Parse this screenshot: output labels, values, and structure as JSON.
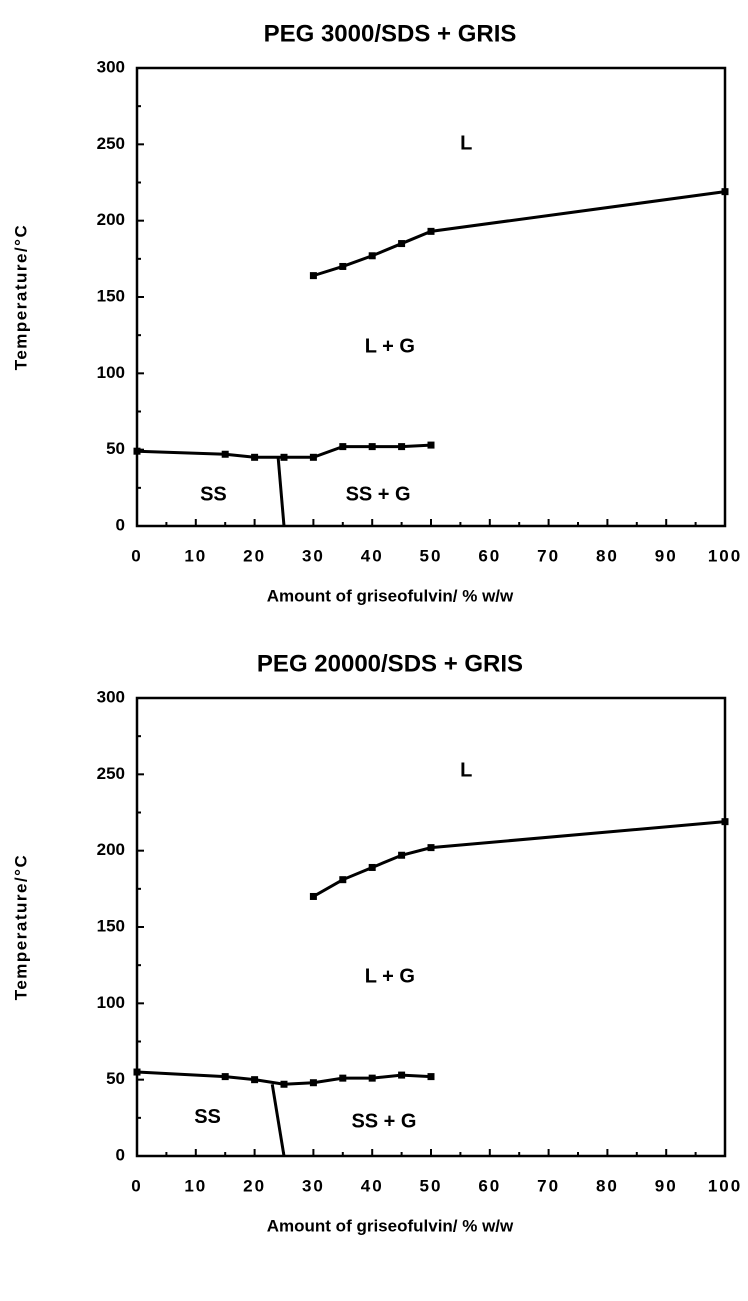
{
  "chart_data": [
    {
      "type": "line",
      "title": "PEG 3000/SDS + GRIS",
      "xlabel": "Amount of griseofulvin/ % w/w",
      "ylabel": "Temperature/°C",
      "xlim": [
        0,
        100
      ],
      "ylim": [
        0,
        300
      ],
      "xticks": [
        0,
        10,
        20,
        30,
        40,
        50,
        60,
        70,
        80,
        90,
        100
      ],
      "yticks": [
        0,
        50,
        100,
        150,
        200,
        250,
        300
      ],
      "xminorticks": [
        5,
        15,
        25,
        35,
        45,
        55,
        65,
        75,
        85,
        95
      ],
      "yminorticks": [
        25,
        75,
        125,
        175,
        225,
        275
      ],
      "series": [
        {
          "x": [
            30,
            35,
            40,
            45,
            50,
            100
          ],
          "values": [
            164,
            170,
            177,
            185,
            193,
            219
          ],
          "color": "#000000",
          "markers": true
        },
        {
          "x": [
            0,
            15,
            20,
            25,
            30,
            35,
            40,
            45,
            50
          ],
          "values": [
            49,
            47,
            45,
            45,
            45,
            52,
            52,
            52,
            53
          ],
          "color": "#000000",
          "markers": true
        },
        {
          "x": [
            24,
            25
          ],
          "values": [
            45,
            0
          ],
          "color": "#000000",
          "markers": false
        }
      ],
      "annotations": [
        {
          "text": "L",
          "x": 56,
          "y": 250
        },
        {
          "text": "L + G",
          "x": 43,
          "y": 117
        },
        {
          "text": "SS",
          "x": 13,
          "y": 20
        },
        {
          "text": "SS + G",
          "x": 41,
          "y": 20
        }
      ]
    },
    {
      "type": "line",
      "title": "PEG 20000/SDS + GRIS",
      "xlabel": "Amount of griseofulvin/ % w/w",
      "ylabel": "Temperature/°C",
      "xlim": [
        0,
        100
      ],
      "ylim": [
        0,
        300
      ],
      "xticks": [
        0,
        10,
        20,
        30,
        40,
        50,
        60,
        70,
        80,
        90,
        100
      ],
      "yticks": [
        0,
        50,
        100,
        150,
        200,
        250,
        300
      ],
      "xminorticks": [
        5,
        15,
        25,
        35,
        45,
        55,
        65,
        75,
        85,
        95
      ],
      "yminorticks": [
        25,
        75,
        125,
        175,
        225,
        275
      ],
      "series": [
        {
          "x": [
            30,
            35,
            40,
            45,
            50,
            100
          ],
          "values": [
            170,
            181,
            189,
            197,
            202,
            219
          ],
          "color": "#000000",
          "markers": true
        },
        {
          "x": [
            0,
            15,
            20,
            25,
            30,
            35,
            40,
            45,
            50
          ],
          "values": [
            55,
            52,
            50,
            47,
            48,
            51,
            51,
            53,
            52
          ],
          "color": "#000000",
          "markers": true
        },
        {
          "x": [
            23,
            25
          ],
          "values": [
            47,
            0
          ],
          "color": "#000000",
          "markers": false
        }
      ],
      "annotations": [
        {
          "text": "L",
          "x": 56,
          "y": 252
        },
        {
          "text": "L + G",
          "x": 43,
          "y": 117
        },
        {
          "text": "SS",
          "x": 12,
          "y": 25
        },
        {
          "text": "SS + G",
          "x": 42,
          "y": 22
        }
      ]
    }
  ]
}
